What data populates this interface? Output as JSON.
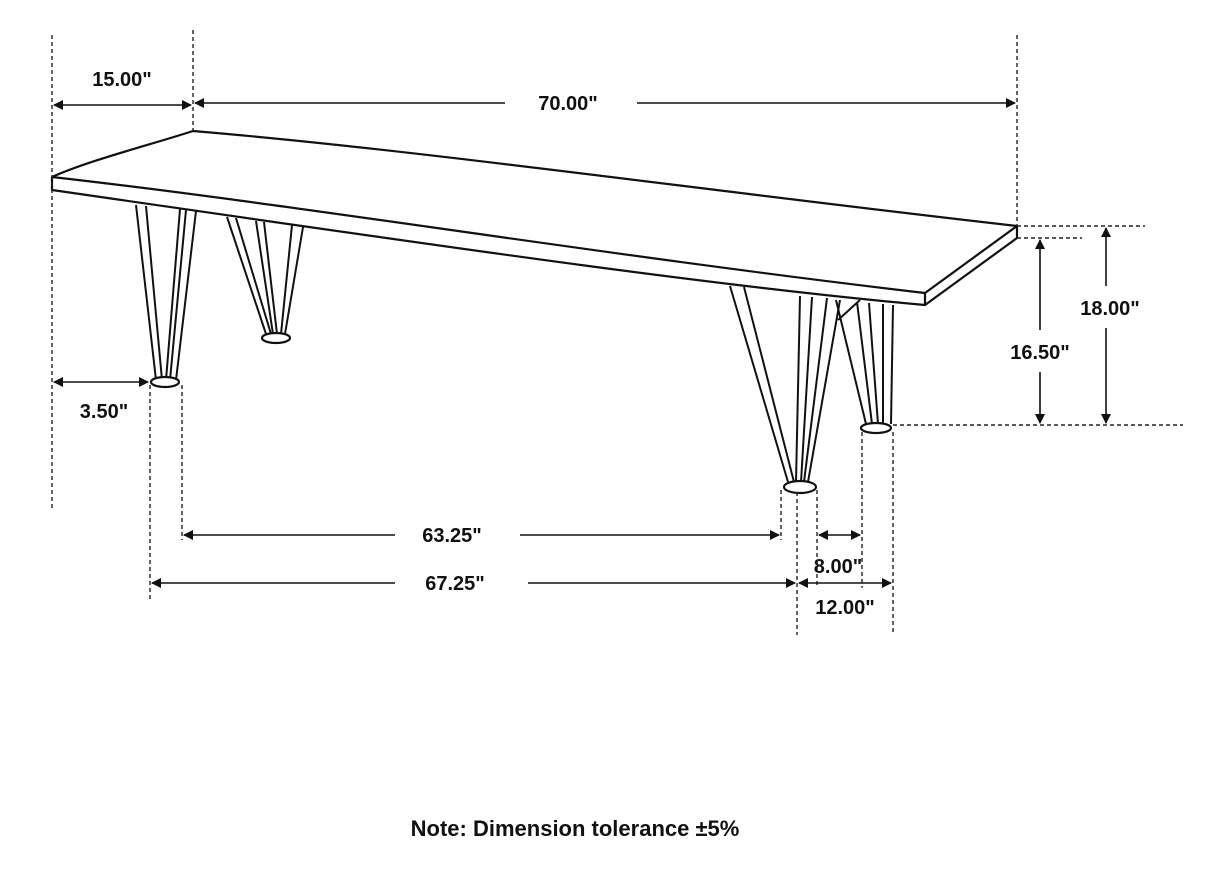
{
  "dimensions": {
    "depth_top": "15.00\"",
    "length_top": "70.00\"",
    "height_total": "18.00\"",
    "height_under": "16.50\"",
    "leg_inset": "3.50\"",
    "inner_leg_span": "63.25\"",
    "outer_leg_span": "67.25\"",
    "leg_inner_width": "8.00\"",
    "leg_outer_width": "12.00\""
  },
  "note": "Note: Dimension tolerance ±5%"
}
